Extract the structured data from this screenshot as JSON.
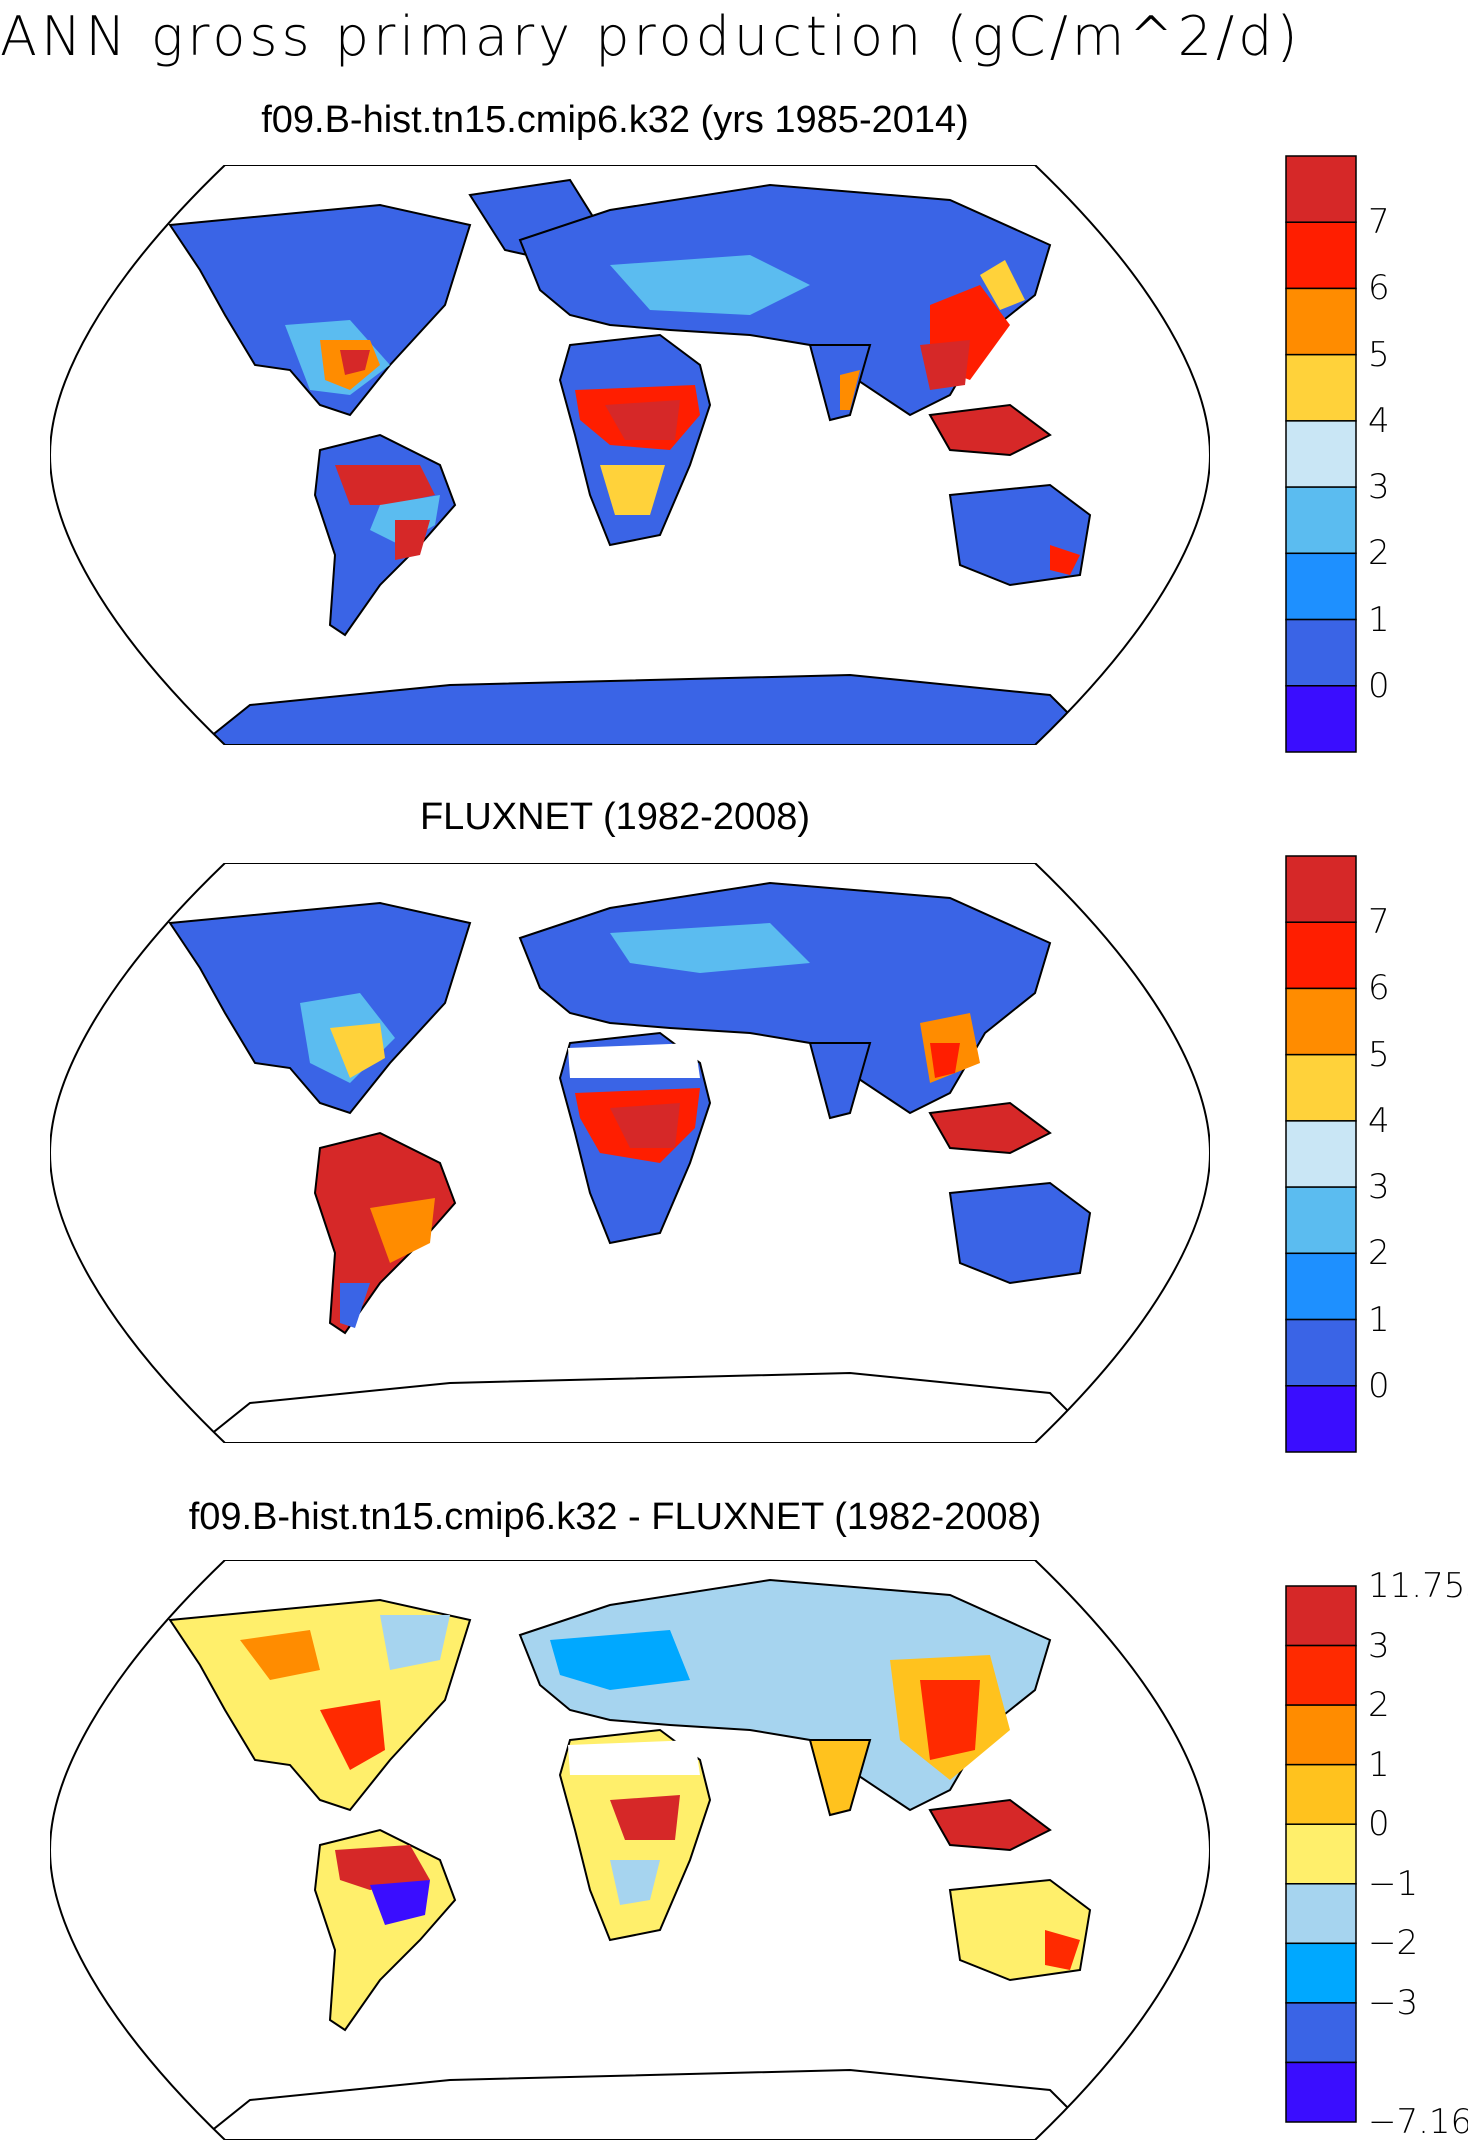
{
  "title": "ANN gross primary production (gC/m^2/d)",
  "colors": {
    "abs_scale": [
      "#3a0dff",
      "#3a64e6",
      "#1e90ff",
      "#5bbcf0",
      "#c9e6f5",
      "#ffd23a",
      "#ff8c00",
      "#ff1e00",
      "#d62828"
    ],
    "diff_scale": [
      "#3a0dff",
      "#3a64e6",
      "#00a8ff",
      "#a6d4ef",
      "#ffef6b",
      "#ffc21e",
      "#ff8c00",
      "#ff2a00",
      "#d62828"
    ],
    "land_default": "#3a64e6",
    "coastline": "#000000"
  },
  "panels": [
    {
      "title": "f09.B-hist.tn15.cmip6.k32 (yrs 1985-2014)",
      "colorbar_labels": [
        "7",
        "6",
        "5",
        "4",
        "3",
        "2",
        "1",
        "0"
      ]
    },
    {
      "title": "FLUXNET (1982-2008)",
      "colorbar_labels": [
        "7",
        "6",
        "5",
        "4",
        "3",
        "2",
        "1",
        "0"
      ]
    },
    {
      "title": "f09.B-hist.tn15.cmip6.k32 - FLUXNET (1982-2008)",
      "colorbar_labels": [
        "11.753",
        "3",
        "2",
        "1",
        "0",
        "−1",
        "−2",
        "−3",
        "−7.162"
      ]
    }
  ]
}
